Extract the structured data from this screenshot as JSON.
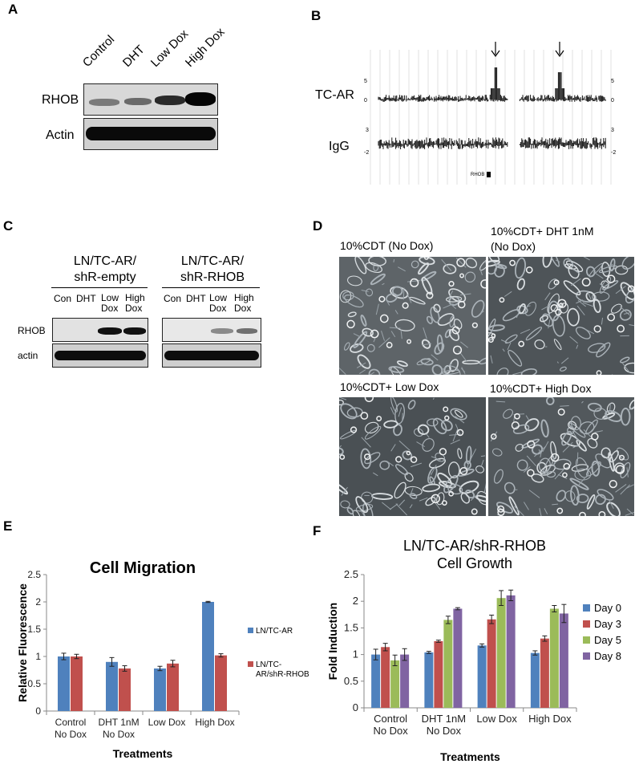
{
  "panels": {
    "A": {
      "letter": "A",
      "lanes": [
        "Control",
        "DHT",
        "Low Dox",
        "High Dox"
      ],
      "rows": [
        "RHOB",
        "Actin"
      ]
    },
    "B": {
      "letter": "B",
      "tracks": [
        "TC-AR",
        "IgG"
      ],
      "gene": "RHOB",
      "tc_scale": [
        "5",
        "0"
      ],
      "igg_scale": [
        "3",
        "-2"
      ]
    },
    "C": {
      "letter": "C",
      "groups": [
        {
          "line1": "LN/TC-AR/",
          "line2": "shR-empty"
        },
        {
          "line1": "LN/TC-AR/",
          "line2": "shR-RHOB"
        }
      ],
      "lanes": [
        "Con",
        "DHT",
        "Low\nDox",
        "High\nDox"
      ],
      "lane_con": "Con",
      "lane_dht": "DHT",
      "lane_low1": "Low",
      "lane_low2": "Dox",
      "lane_high1": "High",
      "lane_high2": "Dox",
      "rows": [
        "RHOB",
        "actin"
      ]
    },
    "D": {
      "letter": "D",
      "captions": [
        "10%CDT (No Dox)",
        "10%CDT+ DHT 1nM",
        "(No Dox)",
        "10%CDT+ Low Dox",
        "10%CDT+ High Dox"
      ]
    },
    "E": {
      "letter": "E",
      "chart_data": {
        "type": "bar",
        "title": "Cell Migration",
        "categories": [
          [
            "Control",
            "No Dox"
          ],
          [
            "DHT 1nM",
            "No Dox"
          ],
          [
            "Low Dox"
          ],
          [
            "High Dox"
          ]
        ],
        "series": [
          {
            "name": "LN/TC-AR",
            "values": [
              1.0,
              0.9,
              0.78,
              2.0
            ],
            "errors": [
              0.06,
              0.08,
              0.04,
              0.01
            ],
            "color": "#4f81bd"
          },
          {
            "name": "LN/TC-AR/shR-RHOB",
            "values": [
              1.0,
              0.78,
              0.87,
              1.02
            ],
            "errors": [
              0.04,
              0.05,
              0.06,
              0.03
            ],
            "color": "#c0504d"
          }
        ],
        "legend_labels": [
          "LN/TC-AR",
          "LN/TC-",
          "AR/shR-RHOB"
        ],
        "xlabel": "Treatments",
        "ylabel": "Relative Fluorescence",
        "ylim": [
          0,
          2.5
        ],
        "yticks": [
          "0",
          "0.5",
          "1",
          "1.5",
          "2",
          "2.5"
        ],
        "legend": "right"
      }
    },
    "F": {
      "letter": "F",
      "chart_data": {
        "type": "bar",
        "title": "LN/TC-AR/shR-RHOB",
        "subtitle": "Cell Growth",
        "categories": [
          [
            "Control",
            "No Dox"
          ],
          [
            "DHT 1nM",
            "No Dox"
          ],
          [
            "Low Dox"
          ],
          [
            "High Dox"
          ]
        ],
        "series": [
          {
            "name": "Day 0",
            "values": [
              1.0,
              1.04,
              1.17,
              1.03
            ],
            "errors": [
              0.1,
              0.02,
              0.03,
              0.04
            ],
            "color": "#4f81bd"
          },
          {
            "name": "Day 3",
            "values": [
              1.14,
              1.25,
              1.66,
              1.3
            ],
            "errors": [
              0.07,
              0.02,
              0.08,
              0.05
            ],
            "color": "#c0504d"
          },
          {
            "name": "Day 5",
            "values": [
              0.89,
              1.65,
              2.06,
              1.86
            ],
            "errors": [
              0.1,
              0.07,
              0.14,
              0.06
            ],
            "color": "#9bbb59"
          },
          {
            "name": "Day 8",
            "values": [
              1.0,
              1.86,
              2.11,
              1.77
            ],
            "errors": [
              0.11,
              0.02,
              0.1,
              0.17
            ],
            "color": "#8064a2"
          }
        ],
        "xlabel": "Treatments",
        "ylabel": "Fold Induction",
        "ylim": [
          0,
          2.5
        ],
        "yticks": [
          "0",
          "0.5",
          "1",
          "1.5",
          "2",
          "2.5"
        ],
        "legend": "right"
      }
    }
  }
}
